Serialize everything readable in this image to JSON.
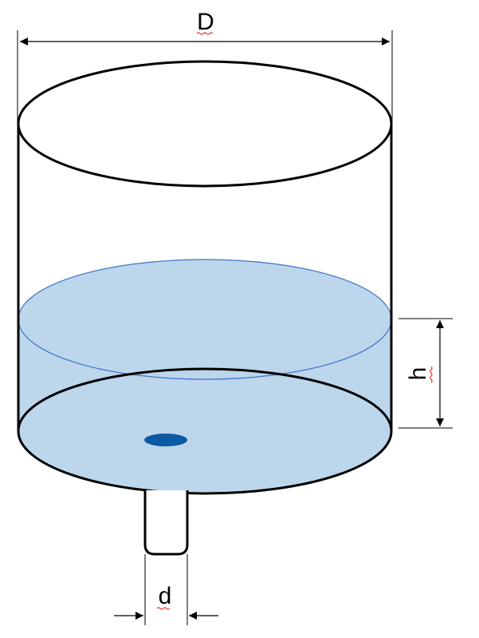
{
  "labels": {
    "diameter": "D",
    "height": "h",
    "outlet_diameter": "d"
  },
  "colors": {
    "outline": "#000000",
    "water_fill": "#bcd6ec",
    "water_edge": "#3f74c4",
    "outlet_hole": "#0b5aa3",
    "spell_mark": "#e03030"
  }
}
